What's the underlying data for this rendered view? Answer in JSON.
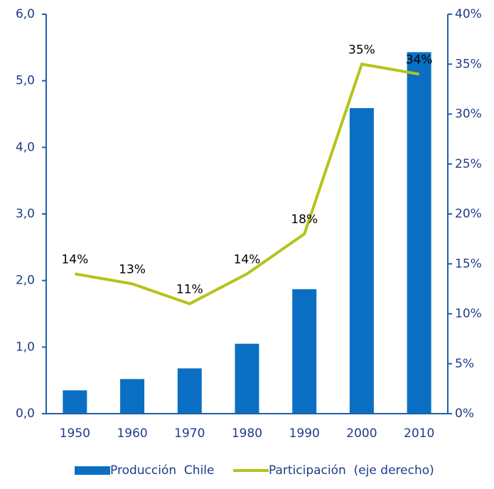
{
  "chart_data": {
    "type": "bar_line",
    "categories": [
      "1950",
      "1960",
      "1970",
      "1980",
      "1990",
      "2000",
      "2010"
    ],
    "series": [
      {
        "name": "Producción  Chile",
        "type": "bar",
        "color": "#0a6fc2",
        "values": [
          0.35,
          0.52,
          0.68,
          1.05,
          1.87,
          4.59,
          5.43
        ]
      },
      {
        "name": "Participación  (eje derecho)",
        "type": "line",
        "axis": "y2",
        "color": "#b5c31a",
        "values": [
          14,
          13,
          11,
          14,
          18,
          35,
          34
        ],
        "value_labels": [
          "14%",
          "13%",
          "11%",
          "14%",
          "18%",
          "35%",
          "34%"
        ]
      }
    ],
    "ylim": [
      0,
      6
    ],
    "yticks": [
      {
        "value": 0,
        "label": "0,0"
      },
      {
        "value": 1,
        "label": "1,0"
      },
      {
        "value": 2,
        "label": "2,0"
      },
      {
        "value": 3,
        "label": "3,0"
      },
      {
        "value": 4,
        "label": "4,0"
      },
      {
        "value": 5,
        "label": "5,0"
      },
      {
        "value": 6,
        "label": "6,0"
      }
    ],
    "y2lim": [
      0,
      40
    ],
    "y2ticks": [
      {
        "value": 0,
        "label": "0%"
      },
      {
        "value": 5,
        "label": "5%"
      },
      {
        "value": 10,
        "label": "10%"
      },
      {
        "value": 15,
        "label": "15%"
      },
      {
        "value": 20,
        "label": "20%"
      },
      {
        "value": 25,
        "label": "25%"
      },
      {
        "value": 30,
        "label": "30%"
      },
      {
        "value": 35,
        "label": "35%"
      },
      {
        "value": 40,
        "label": "40%"
      }
    ],
    "legend": "bottom"
  }
}
